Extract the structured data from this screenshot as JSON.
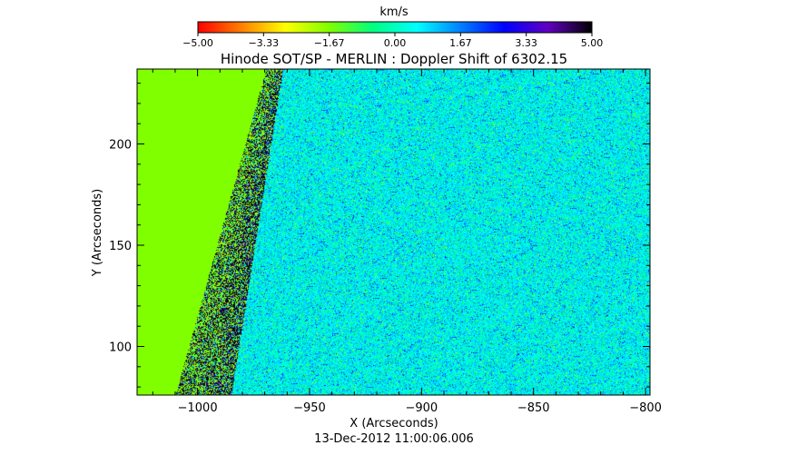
{
  "chart_data": {
    "type": "heatmap",
    "title": "Hinode SOT/SP - MERLIN : Doppler Shift of 6302.15",
    "subtitle": "13-Dec-2012 11:00:06.006",
    "xlabel": "X (Arcseconds)",
    "ylabel": "Y (Arcseconds)",
    "xlim": [
      -1027,
      -798
    ],
    "ylim": [
      76,
      237
    ],
    "x_ticks": [
      {
        "value": -1000,
        "label": "−1000"
      },
      {
        "value": -950,
        "label": "−950"
      },
      {
        "value": -900,
        "label": "−900"
      },
      {
        "value": -850,
        "label": "−850"
      },
      {
        "value": -800,
        "label": "−800"
      }
    ],
    "y_ticks": [
      {
        "value": 100,
        "label": "100"
      },
      {
        "value": 150,
        "label": "150"
      },
      {
        "value": 200,
        "label": "200"
      }
    ],
    "colorbar": {
      "label": "km/s",
      "min": -5.0,
      "max": 5.0,
      "tick_labels": [
        "−5.00",
        "−3.33",
        "−1.67",
        "0.00",
        "1.67",
        "3.33",
        "5.00"
      ],
      "stops": [
        "#ff0000",
        "#ff8000",
        "#ffff00",
        "#80ff00",
        "#00ff80",
        "#00ffff",
        "#0080ff",
        "#0000ff",
        "#6000c0",
        "#000000"
      ]
    },
    "map": {
      "off_disk_value": -1.5,
      "off_disk_color": "#80ff00",
      "limb_x_at_ymin": -985,
      "limb_x_at_ymax": -962,
      "typical_value": 0.5,
      "noise_band_width": 25
    }
  }
}
